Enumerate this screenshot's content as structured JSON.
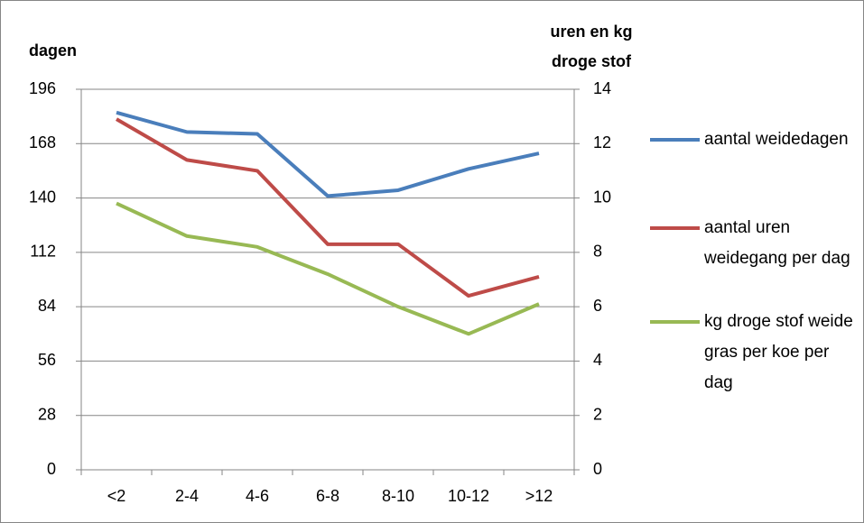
{
  "chart_data": {
    "type": "line",
    "ylabel": "dagen",
    "y2label": [
      "uren en kg",
      "droge stof"
    ],
    "categories": [
      "<2",
      "2-4",
      "4-6",
      "6-8",
      "8-10",
      "10-12",
      ">12"
    ],
    "series": [
      {
        "name": "aantal weidedagen",
        "color": "#4a7ebb",
        "values": [
          184,
          174,
          173,
          141,
          144,
          155,
          163
        ]
      },
      {
        "name": "aantal uren weidegang per dag",
        "color": "#be4b48",
        "axis": "y2",
        "values": [
          12.9,
          11.4,
          11.0,
          8.3,
          8.3,
          6.4,
          7.1
        ]
      },
      {
        "name": "kg droge stof weide gras per koe per dag",
        "color": "#98b954",
        "axis": "y2",
        "values": [
          9.8,
          8.6,
          8.2,
          7.2,
          6.0,
          5.0,
          6.1
        ]
      }
    ],
    "ylim": [
      0,
      196
    ],
    "yticks": [
      0,
      28,
      56,
      84,
      112,
      140,
      168,
      196
    ],
    "y2lim": [
      0,
      14
    ],
    "y2ticks": [
      0,
      2,
      4,
      6,
      8,
      10,
      12,
      14
    ],
    "grid": true
  }
}
